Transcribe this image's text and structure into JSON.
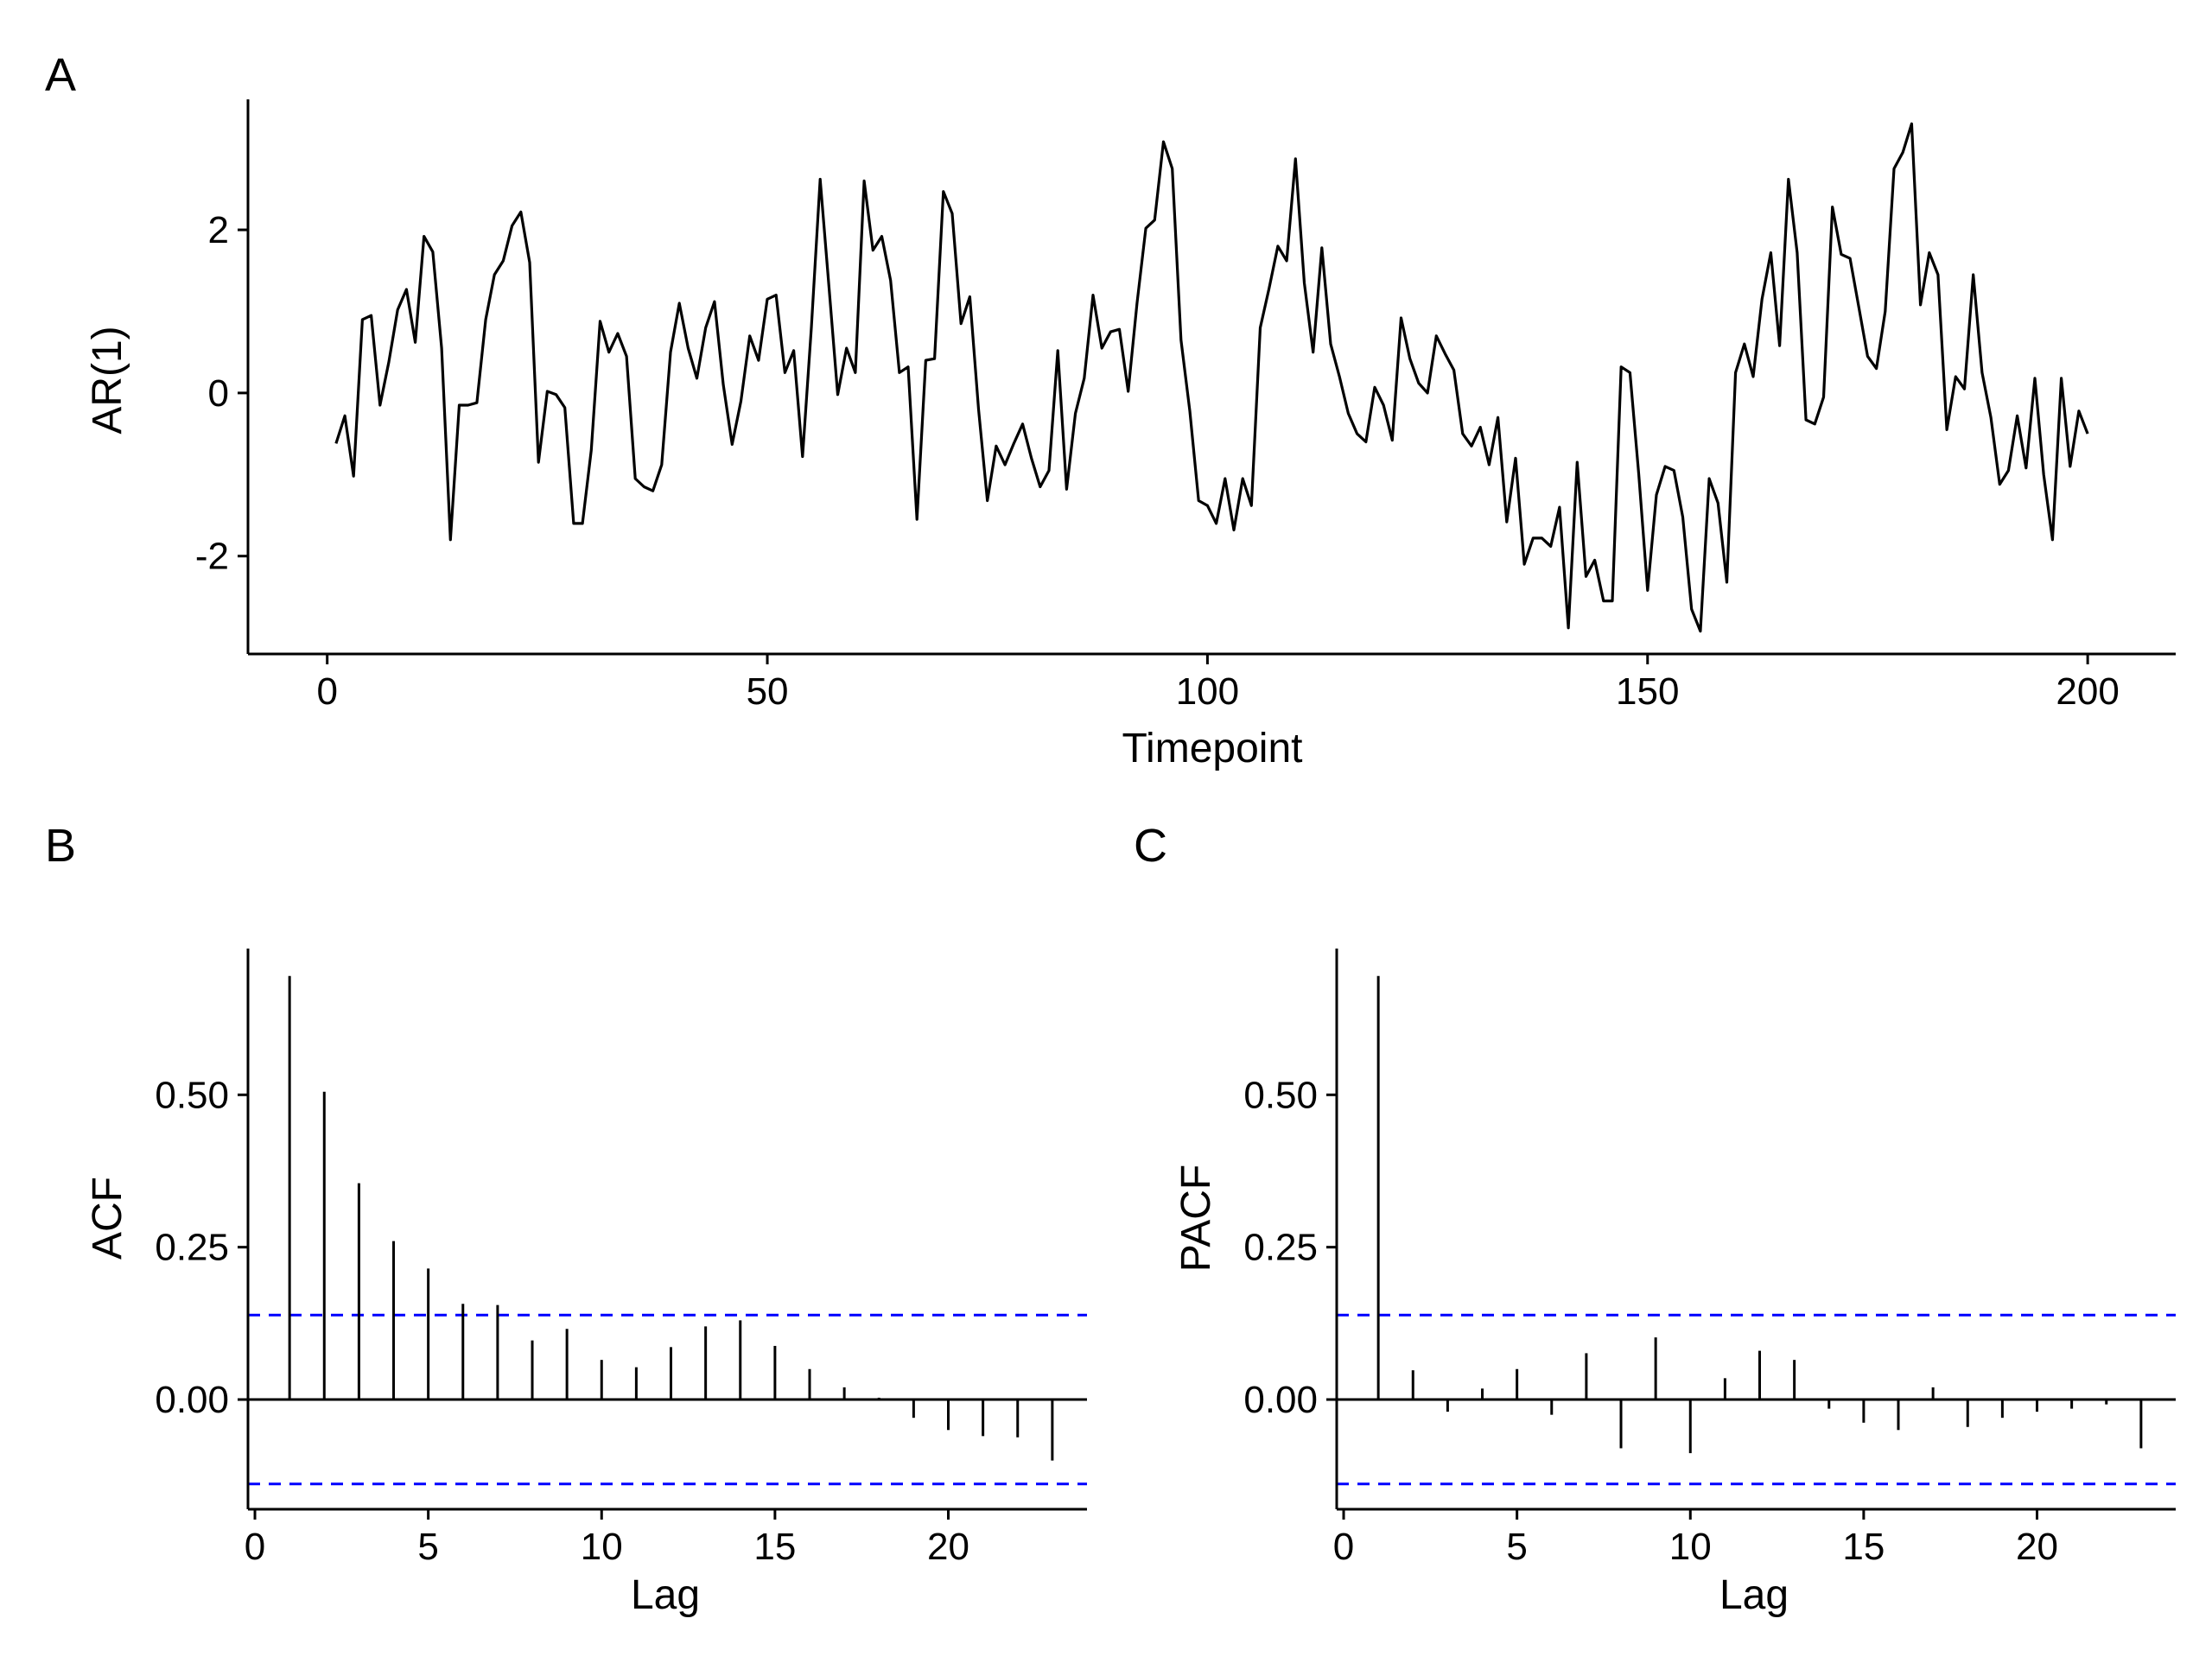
{
  "chart_data": [
    {
      "type": "line",
      "panel_label": "A",
      "xlabel": "Timepoint",
      "ylabel": "AR(1)",
      "xlim": [
        -9,
        210
      ],
      "ylim": [
        -3.2,
        3.6
      ],
      "xticks": [
        0,
        50,
        100,
        150,
        200
      ],
      "xtick_labels": [
        "0",
        "50",
        "100",
        "150",
        "200"
      ],
      "yticks": [
        -2,
        0,
        2
      ],
      "ytick_labels": [
        "-2",
        "0",
        "2"
      ],
      "grid": false,
      "x": [
        1,
        2,
        3,
        4,
        5,
        6,
        7,
        8,
        9,
        10,
        11,
        12,
        13,
        14,
        15,
        16,
        17,
        18,
        19,
        20,
        21,
        22,
        23,
        24,
        25,
        26,
        27,
        28,
        29,
        30,
        31,
        32,
        33,
        34,
        35,
        36,
        37,
        38,
        39,
        40,
        41,
        42,
        43,
        44,
        45,
        46,
        47,
        48,
        49,
        50,
        51,
        52,
        53,
        54,
        55,
        56,
        57,
        58,
        59,
        60,
        61,
        62,
        63,
        64,
        65,
        66,
        67,
        68,
        69,
        70,
        71,
        72,
        73,
        74,
        75,
        76,
        77,
        78,
        79,
        80,
        81,
        82,
        83,
        84,
        85,
        86,
        87,
        88,
        89,
        90,
        91,
        92,
        93,
        94,
        95,
        96,
        97,
        98,
        99,
        100,
        101,
        102,
        103,
        104,
        105,
        106,
        107,
        108,
        109,
        110,
        111,
        112,
        113,
        114,
        115,
        116,
        117,
        118,
        119,
        120,
        121,
        122,
        123,
        124,
        125,
        126,
        127,
        128,
        129,
        130,
        131,
        132,
        133,
        134,
        135,
        136,
        137,
        138,
        139,
        140,
        141,
        142,
        143,
        144,
        145,
        146,
        147,
        148,
        149,
        150,
        151,
        152,
        153,
        154,
        155,
        156,
        157,
        158,
        159,
        160,
        161,
        162,
        163,
        164,
        165,
        166,
        167,
        168,
        169,
        170,
        171,
        172,
        173,
        174,
        175,
        176,
        177,
        178,
        179,
        180,
        181,
        182,
        183,
        184,
        185,
        186,
        187,
        188,
        189,
        190,
        191,
        192,
        193,
        194,
        195,
        196,
        197,
        198,
        199,
        200
      ],
      "y": [
        -0.62,
        -0.28,
        -1.02,
        0.9,
        0.95,
        -0.15,
        0.38,
        1.02,
        1.27,
        0.62,
        1.92,
        1.73,
        0.55,
        -1.8,
        -0.15,
        -0.15,
        -0.12,
        0.9,
        1.45,
        1.62,
        2.05,
        2.22,
        1.6,
        -0.85,
        0.02,
        -0.02,
        -0.18,
        -1.6,
        -1.6,
        -0.7,
        0.88,
        0.5,
        0.73,
        0.45,
        -1.05,
        -1.15,
        -1.2,
        -0.88,
        0.5,
        1.1,
        0.55,
        0.18,
        0.8,
        1.12,
        0.1,
        -0.63,
        -0.1,
        0.7,
        0.4,
        1.15,
        1.2,
        0.25,
        0.52,
        -0.78,
        0.8,
        2.62,
        1.3,
        -0.02,
        0.55,
        0.25,
        2.6,
        1.75,
        1.92,
        1.38,
        0.25,
        0.32,
        -1.55,
        0.4,
        0.42,
        2.47,
        2.2,
        0.85,
        1.18,
        -0.2,
        -1.32,
        -0.65,
        -0.88,
        -0.62,
        -0.38,
        -0.8,
        -1.15,
        -0.95,
        0.52,
        -1.18,
        -0.25,
        0.18,
        1.2,
        0.55,
        0.75,
        0.78,
        0.02,
        1.1,
        2.02,
        2.12,
        3.08,
        2.75,
        0.65,
        -0.22,
        -1.32,
        -1.38,
        -1.6,
        -1.05,
        -1.68,
        -1.05,
        -1.38,
        0.8,
        1.28,
        1.8,
        1.62,
        2.87,
        1.35,
        0.5,
        1.78,
        0.6,
        0.2,
        -0.25,
        -0.5,
        -0.6,
        0.07,
        -0.15,
        -0.58,
        0.92,
        0.42,
        0.12,
        0.0,
        0.7,
        0.48,
        0.28,
        -0.5,
        -0.65,
        -0.42,
        -0.88,
        -0.3,
        -1.58,
        -0.8,
        -2.1,
        -1.78,
        -1.78,
        -1.88,
        -1.4,
        -2.88,
        -0.85,
        -2.25,
        -2.05,
        -2.55,
        -2.55,
        0.32,
        0.25,
        -1.0,
        -2.42,
        -1.25,
        -0.9,
        -0.95,
        -1.52,
        -2.65,
        -2.92,
        -1.05,
        -1.35,
        -2.32,
        0.25,
        0.6,
        0.2,
        1.15,
        1.72,
        0.58,
        2.62,
        1.72,
        -0.33,
        -0.38,
        -0.05,
        2.28,
        1.7,
        1.65,
        1.05,
        0.45,
        0.3,
        1.0,
        2.75,
        2.95,
        3.3,
        1.08,
        1.72,
        1.45,
        -0.45,
        0.2,
        0.05,
        1.45,
        0.25,
        -0.3,
        -1.12,
        -0.95,
        -0.28,
        -0.92,
        0.18,
        -1.0,
        -1.8,
        0.18,
        -0.9,
        -0.22,
        -0.5
      ]
    },
    {
      "type": "bar",
      "panel_label": "B",
      "xlabel": "Lag",
      "ylabel": "ACF",
      "xlim": [
        -0.2,
        24
      ],
      "ylim": [
        -0.18,
        0.74
      ],
      "xticks": [
        0,
        5,
        10,
        15,
        20
      ],
      "xtick_labels": [
        "0",
        "5",
        "10",
        "15",
        "20"
      ],
      "yticks": [
        0,
        0.25,
        0.5
      ],
      "ytick_labels": [
        "0.00",
        "0.25",
        "0.50"
      ],
      "confidence_bound": 0.1386,
      "confidence_color": "#0000FF",
      "grid": false,
      "lags": [
        1,
        2,
        3,
        4,
        5,
        6,
        7,
        8,
        9,
        10,
        11,
        12,
        13,
        14,
        15,
        16,
        17,
        18,
        19,
        20,
        21,
        22,
        23
      ],
      "values": [
        0.695,
        0.505,
        0.355,
        0.26,
        0.215,
        0.157,
        0.155,
        0.097,
        0.116,
        0.065,
        0.053,
        0.086,
        0.12,
        0.13,
        0.088,
        0.05,
        0.02,
        0.003,
        -0.03,
        -0.05,
        -0.06,
        -0.062,
        -0.1
      ]
    },
    {
      "type": "bar",
      "panel_label": "C",
      "xlabel": "Lag",
      "ylabel": "PACF",
      "xlim": [
        -0.2,
        24
      ],
      "ylim": [
        -0.18,
        0.74
      ],
      "xticks": [
        0,
        5,
        10,
        15,
        20
      ],
      "xtick_labels": [
        "0",
        "5",
        "10",
        "15",
        "20"
      ],
      "yticks": [
        0,
        0.25,
        0.5
      ],
      "ytick_labels": [
        "0.00",
        "0.25",
        "0.50"
      ],
      "confidence_bound": 0.1386,
      "confidence_color": "#0000FF",
      "grid": false,
      "lags": [
        1,
        2,
        3,
        4,
        5,
        6,
        7,
        8,
        9,
        10,
        11,
        12,
        13,
        14,
        15,
        16,
        17,
        18,
        19,
        20,
        21,
        22,
        23
      ],
      "values": [
        0.695,
        0.048,
        -0.02,
        0.018,
        0.05,
        -0.025,
        0.076,
        -0.08,
        0.102,
        -0.088,
        0.035,
        0.08,
        0.065,
        -0.015,
        -0.038,
        -0.05,
        0.02,
        -0.045,
        -0.03,
        -0.02,
        -0.015,
        -0.008,
        -0.08
      ]
    }
  ]
}
